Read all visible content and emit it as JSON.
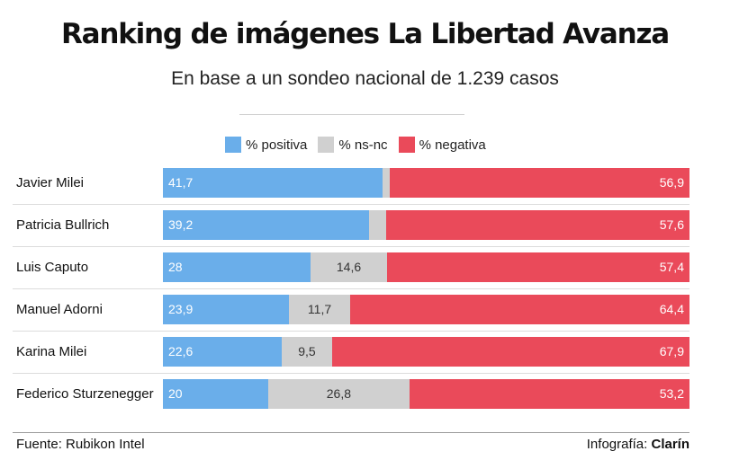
{
  "header": {
    "title": "Ranking de imágenes La Libertad Avanza",
    "subtitle": "En base a un sondeo nacional de 1.239 casos"
  },
  "footer": {
    "source": "Fuente: Rubikon Intel",
    "credit_prefix": "Infografía: ",
    "credit_brand": "Clarín"
  },
  "chart_data": {
    "type": "bar",
    "orientation": "horizontal",
    "stacked": true,
    "title": "Ranking de imágenes La Libertad Avanza",
    "subtitle": "En base a un sondeo nacional de 1.239 casos",
    "categories": [
      "Javier Milei",
      "Patricia Bullrich",
      "Luis Caputo",
      "Manuel Adorni",
      "Karina Milei",
      "Federico Sturzenegger"
    ],
    "series": [
      {
        "name": "% positiva",
        "color": "#6aaeea",
        "values": [
          41.7,
          39.2,
          28,
          23.9,
          22.6,
          20
        ],
        "labels": [
          "41,7",
          "39,2",
          "28",
          "23,9",
          "22,6",
          "20"
        ]
      },
      {
        "name": "% ns-nc",
        "color": "#d0d0d0",
        "values": [
          1.4,
          3.2,
          14.6,
          11.7,
          9.5,
          26.8
        ],
        "labels": [
          "",
          "",
          "14,6",
          "11,7",
          "9,5",
          "26,8"
        ]
      },
      {
        "name": "% negativa",
        "color": "#ea4a5a",
        "values": [
          56.9,
          57.6,
          57.4,
          64.4,
          67.9,
          53.2
        ],
        "labels": [
          "56,9",
          "57,6",
          "57,4",
          "64,4",
          "67,9",
          "53,2"
        ]
      }
    ],
    "xlim": [
      0,
      100
    ],
    "legend": "top-center",
    "grid": false
  }
}
